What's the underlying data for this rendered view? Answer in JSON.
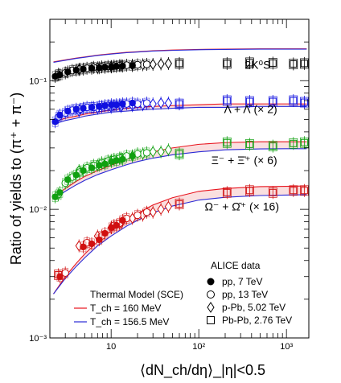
{
  "chart_data": {
    "type": "scatter",
    "xscale": "log",
    "yscale": "log",
    "xlim": [
      2,
      1800
    ],
    "ylim": [
      0.001,
      0.3
    ],
    "xlabel": "⟨dN_ch/dη⟩_|η|<0.5",
    "ylabel": "Ratio of yields to (π⁺ + π⁻)",
    "x_ticks": [
      {
        "value": 10,
        "label": "10"
      },
      {
        "value": 100,
        "label": "10²"
      },
      {
        "value": 1000,
        "label": "10³"
      }
    ],
    "y_ticks": [
      {
        "value": 0.001,
        "label": "10⁻³"
      },
      {
        "value": 0.01,
        "label": "10⁻²"
      },
      {
        "value": 0.1,
        "label": "10⁻¹"
      }
    ],
    "species_labels": [
      {
        "text": "2K⁰S",
        "x": 470,
        "y": 0.124
      },
      {
        "text": "Λ + Λ̄ (× 2)",
        "x": 390,
        "y": 0.056
      },
      {
        "text": "Ξ⁻ + Ξ̄⁺ (× 6)",
        "x": 330,
        "y": 0.0225
      },
      {
        "text": "Ω⁻ + Ω̄⁺ (× 16)",
        "x": 310,
        "y": 0.0098
      }
    ],
    "legend_data": {
      "title": "ALICE data",
      "entries": [
        {
          "marker": "filled-circle",
          "label": "pp, 7 TeV"
        },
        {
          "marker": "open-circle",
          "label": "pp, 13 TeV"
        },
        {
          "marker": "open-diamond",
          "label": "p-Pb, 5.02 TeV"
        },
        {
          "marker": "open-square",
          "label": "Pb-Pb, 2.76 TeV"
        }
      ]
    },
    "legend_model": {
      "title": "Thermal Model (SCE)",
      "entries": [
        {
          "color": "#e8141e",
          "label": "T_ch = 160 MeV"
        },
        {
          "color": "#2a2ad6",
          "label": "T_ch = 156.5 MeV"
        }
      ]
    },
    "series": [
      {
        "species": "K0S",
        "color": "#000000",
        "pp7": {
          "x": [
            2.3,
            2.6,
            3.2,
            4.0,
            4.8,
            6.0,
            7.3,
            8.5,
            10.1,
            11.5,
            13.5,
            17.5
          ],
          "y": [
            0.108,
            0.111,
            0.117,
            0.121,
            0.123,
            0.125,
            0.126,
            0.127,
            0.128,
            0.129,
            0.13,
            0.131
          ]
        },
        "pp13": {
          "x": [
            2.5,
            3.0,
            3.6,
            4.4,
            5.3,
            6.3,
            7.8,
            9.2,
            10.8,
            12.5,
            15.0,
            20.0,
            25.5
          ],
          "y": [
            0.112,
            0.115,
            0.12,
            0.123,
            0.125,
            0.127,
            0.128,
            0.129,
            0.13,
            0.131,
            0.132,
            0.133,
            0.134
          ]
        },
        "pPb": {
          "x": [
            4.3,
            7.0,
            10.0,
            13.0,
            17.5,
            23.0,
            30.0,
            37.0,
            45.0
          ],
          "y": [
            0.122,
            0.126,
            0.129,
            0.131,
            0.132,
            0.133,
            0.134,
            0.135,
            0.136
          ]
        },
        "PbPb": {
          "x": [
            60,
            210,
            380,
            700,
            1200,
            1600
          ],
          "y": [
            0.136,
            0.136,
            0.138,
            0.137,
            0.135,
            0.136
          ]
        }
      },
      {
        "species": "Lambda",
        "color": "#1010e0",
        "pp7": {
          "x": [
            2.3,
            2.6,
            3.2,
            4.0,
            4.8,
            6.0,
            7.3,
            8.5,
            10.1,
            11.5,
            13.5,
            17.5
          ],
          "y": [
            0.048,
            0.054,
            0.058,
            0.06,
            0.061,
            0.062,
            0.063,
            0.064,
            0.065,
            0.065,
            0.066,
            0.067
          ]
        },
        "pp13": {
          "x": [
            2.5,
            3.0,
            3.6,
            4.4,
            5.3,
            6.3,
            7.8,
            9.2,
            10.8,
            12.5,
            15.0,
            20.0,
            25.5
          ],
          "y": [
            0.052,
            0.056,
            0.059,
            0.06,
            0.062,
            0.062,
            0.063,
            0.064,
            0.064,
            0.065,
            0.066,
            0.066,
            0.067
          ]
        },
        "pPb": {
          "x": [
            4.3,
            7.0,
            10.0,
            13.0,
            17.5,
            23.0,
            30.0,
            37.0,
            45.0
          ],
          "y": [
            0.058,
            0.061,
            0.062,
            0.063,
            0.064,
            0.065,
            0.066,
            0.067,
            0.067
          ]
        },
        "PbPb": {
          "x": [
            60,
            210,
            380,
            700,
            1200,
            1600
          ],
          "y": [
            0.066,
            0.07,
            0.069,
            0.069,
            0.07,
            0.068
          ]
        }
      },
      {
        "species": "Xi",
        "color": "#10a010",
        "pp7": {
          "x": [
            2.3,
            2.6,
            3.2,
            4.0,
            4.8,
            6.0,
            7.3,
            8.5,
            10.1,
            11.5,
            13.5,
            17.5
          ],
          "y": [
            0.0125,
            0.0135,
            0.017,
            0.0185,
            0.02,
            0.021,
            0.022,
            0.0225,
            0.0235,
            0.024,
            0.0245,
            0.026
          ]
        },
        "pp13": {
          "x": [
            2.5,
            3.0,
            3.6,
            4.4,
            5.3,
            6.3,
            7.8,
            9.2,
            10.8,
            12.5,
            15.0,
            20.0,
            25.5
          ],
          "y": [
            0.013,
            0.016,
            0.0178,
            0.0195,
            0.021,
            0.022,
            0.023,
            0.0238,
            0.0245,
            0.025,
            0.026,
            0.027,
            0.0275
          ]
        },
        "pPb": {
          "x": [
            4.3,
            7.0,
            10.0,
            13.0,
            17.5,
            23.0,
            30.0,
            37.0,
            45.0
          ],
          "y": [
            0.02,
            0.022,
            0.024,
            0.025,
            0.026,
            0.027,
            0.028,
            0.028,
            0.029
          ]
        },
        "PbPb": {
          "x": [
            60,
            210,
            380,
            700,
            1200,
            1600
          ],
          "y": [
            0.027,
            0.033,
            0.032,
            0.031,
            0.0325,
            0.033
          ]
        }
      },
      {
        "species": "Omega",
        "color": "#d01010",
        "pp7": {
          "x": [
            2.6,
            4.8,
            6.0,
            7.3,
            8.5,
            10.1,
            11.5,
            13.5
          ],
          "y": [
            0.003,
            0.0051,
            0.0054,
            0.0058,
            0.0065,
            0.0072,
            0.0075,
            0.0082
          ]
        },
        "pp13": {
          "x": [
            3.0,
            5.3,
            7.8,
            10.8,
            12.5,
            15.0,
            20.0,
            25.5
          ],
          "y": [
            0.0032,
            0.0055,
            0.0062,
            0.0075,
            0.0078,
            0.0085,
            0.009,
            0.0095
          ]
        },
        "pPb": {
          "x": [
            4.3,
            7.0,
            10.0,
            13.0,
            17.5,
            23.0,
            30.0,
            37.0,
            45.0
          ],
          "y": [
            0.0052,
            0.0062,
            0.0072,
            0.0078,
            0.0085,
            0.009,
            0.0095,
            0.01,
            0.0105
          ]
        },
        "PbPb": {
          "x": [
            2.5,
            60,
            210,
            380,
            700,
            1200,
            1600
          ],
          "y": [
            0.0031,
            0.011,
            0.0135,
            0.014,
            0.0135,
            0.014,
            0.014
          ]
        }
      }
    ],
    "model_curves": {
      "Tch_160": {
        "color": "#e8141e",
        "x": [
          2.2,
          3,
          4,
          5,
          7,
          10,
          15,
          20,
          30,
          50,
          100,
          200,
          500,
          1000,
          1700
        ],
        "K0S": [
          0.14,
          0.145,
          0.15,
          0.153,
          0.158,
          0.162,
          0.166,
          0.168,
          0.171,
          0.173,
          0.175,
          0.176,
          0.177,
          0.177,
          0.177
        ],
        "Lambda": [
          0.048,
          0.051,
          0.053,
          0.055,
          0.057,
          0.059,
          0.061,
          0.062,
          0.063,
          0.064,
          0.065,
          0.066,
          0.066,
          0.066,
          0.066
        ],
        "Xi": [
          0.0125,
          0.0145,
          0.0165,
          0.018,
          0.02,
          0.022,
          0.0245,
          0.026,
          0.028,
          0.03,
          0.032,
          0.033,
          0.0335,
          0.0335,
          0.0335
        ],
        "Omega": [
          0.0022,
          0.003,
          0.0038,
          0.0045,
          0.0056,
          0.0068,
          0.0083,
          0.0093,
          0.0108,
          0.0123,
          0.0138,
          0.0145,
          0.015,
          0.0151,
          0.0152
        ]
      },
      "Tch_156.5": {
        "color": "#2a2ad6",
        "x": [
          2.2,
          3,
          4,
          5,
          7,
          10,
          15,
          20,
          30,
          50,
          100,
          200,
          500,
          1000,
          1700
        ],
        "K0S": [
          0.139,
          0.144,
          0.149,
          0.152,
          0.157,
          0.161,
          0.165,
          0.167,
          0.17,
          0.172,
          0.174,
          0.175,
          0.176,
          0.176,
          0.176
        ],
        "Lambda": [
          0.046,
          0.049,
          0.051,
          0.053,
          0.055,
          0.057,
          0.058,
          0.059,
          0.06,
          0.061,
          0.062,
          0.062,
          0.063,
          0.063,
          0.063
        ],
        "Xi": [
          0.012,
          0.0138,
          0.0155,
          0.0168,
          0.0186,
          0.0203,
          0.0222,
          0.0235,
          0.025,
          0.0265,
          0.028,
          0.029,
          0.0295,
          0.0296,
          0.0296
        ],
        "Omega": [
          0.0022,
          0.0029,
          0.0036,
          0.0042,
          0.0052,
          0.0062,
          0.0074,
          0.0082,
          0.0094,
          0.0106,
          0.0118,
          0.0124,
          0.0128,
          0.0129,
          0.013
        ]
      }
    }
  }
}
